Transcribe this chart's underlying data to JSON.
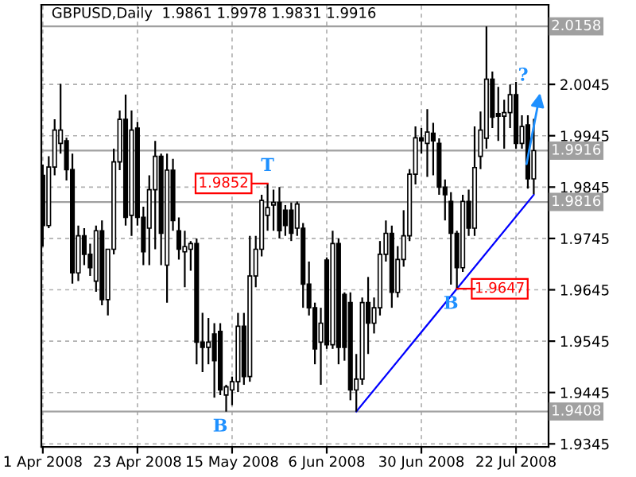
{
  "chart_data": {
    "type": "candlestick",
    "title": "GBPUSD,Daily  1.9861 1.9978 1.9831 1.9916",
    "categories": [
      "1 Apr 2008",
      null,
      null,
      null,
      null,
      null,
      null,
      null,
      null,
      null,
      null,
      null,
      null,
      null,
      null,
      null,
      "23 Apr 2008",
      null,
      null,
      null,
      null,
      null,
      null,
      null,
      null,
      null,
      null,
      null,
      null,
      null,
      null,
      null,
      "15 May 2008",
      null,
      null,
      null,
      null,
      null,
      null,
      null,
      null,
      null,
      null,
      null,
      null,
      null,
      null,
      null,
      "6 Jun 2008",
      null,
      null,
      null,
      null,
      null,
      null,
      null,
      null,
      null,
      null,
      null,
      null,
      null,
      null,
      null,
      "30 Jun 2008",
      null,
      null,
      null,
      null,
      null,
      null,
      null,
      null,
      null,
      null,
      null,
      null,
      null,
      null,
      null,
      "22 Jul 2008",
      null,
      null,
      null
    ],
    "ohlc": [
      [
        1.9868,
        1.9889,
        1.9729,
        1.977
      ],
      [
        1.977,
        1.9905,
        1.9765,
        1.9884
      ],
      [
        1.9884,
        1.9977,
        1.9868,
        1.9956
      ],
      [
        1.993,
        2.0046,
        1.991,
        1.9956
      ],
      [
        1.9935,
        1.9941,
        1.9858,
        1.9879
      ],
      [
        1.9879,
        1.991,
        1.9657,
        1.9678
      ],
      [
        1.9678,
        1.977,
        1.9662,
        1.975
      ],
      [
        1.975,
        1.9765,
        1.9693,
        1.9714
      ],
      [
        1.9714,
        1.9735,
        1.9672,
        1.9688
      ],
      [
        1.9662,
        1.977,
        1.9641,
        1.976
      ],
      [
        1.976,
        1.978,
        1.9615,
        1.9626
      ],
      [
        1.9626,
        1.9724,
        1.9595,
        1.9724
      ],
      [
        1.9724,
        1.992,
        1.9714,
        1.9894
      ],
      [
        1.9894,
        1.9994,
        1.9878,
        1.9977
      ],
      [
        1.9977,
        2.0025,
        1.977,
        1.9786
      ],
      [
        1.979,
        1.9994,
        1.975,
        1.9956
      ],
      [
        1.996,
        1.9972,
        1.977,
        1.9786
      ],
      [
        1.9786,
        1.9807,
        1.9693,
        1.9719
      ],
      [
        1.9765,
        1.9868,
        1.9693,
        1.984
      ],
      [
        1.984,
        1.9935,
        1.9724,
        1.9905
      ],
      [
        1.9905,
        1.991,
        1.9693,
        1.9755
      ],
      [
        1.9693,
        1.991,
        1.962,
        1.9878
      ],
      [
        1.9878,
        1.99,
        1.976,
        1.978
      ],
      [
        1.976,
        1.9786,
        1.9704,
        1.9724
      ],
      [
        1.9719,
        1.976,
        1.965,
        1.9729
      ],
      [
        1.9724,
        1.974,
        1.9682,
        1.9735
      ],
      [
        1.9735,
        1.9745,
        1.95,
        1.9543
      ],
      [
        1.9543,
        1.96,
        1.9485,
        1.9533
      ],
      [
        1.9533,
        1.959,
        1.95,
        1.9543
      ],
      [
        1.9559,
        1.958,
        1.9435,
        1.9507
      ],
      [
        1.9564,
        1.958,
        1.944,
        1.945
      ],
      [
        1.944,
        1.946,
        1.9408,
        1.9456
      ],
      [
        1.945,
        1.9476,
        1.942,
        1.9466
      ],
      [
        1.9466,
        1.96,
        1.9446,
        1.9574
      ],
      [
        1.9574,
        1.96,
        1.946,
        1.9476
      ],
      [
        1.9476,
        1.975,
        1.9466,
        1.9672
      ],
      [
        1.9672,
        1.975,
        1.965,
        1.9724
      ],
      [
        1.9724,
        1.983,
        1.971,
        1.9819
      ],
      [
        1.979,
        1.9852,
        1.976,
        1.9805
      ],
      [
        1.981,
        1.984,
        1.976,
        1.9815
      ],
      [
        1.9815,
        1.9845,
        1.9745,
        1.976
      ],
      [
        1.98,
        1.981,
        1.975,
        1.977
      ],
      [
        1.98,
        1.9815,
        1.974,
        1.9755
      ],
      [
        1.9765,
        1.9817,
        1.975,
        1.9812
      ],
      [
        1.9765,
        1.9775,
        1.961,
        1.9656
      ],
      [
        1.9656,
        1.97,
        1.9595,
        1.961
      ],
      [
        1.961,
        1.962,
        1.95,
        1.953
      ],
      [
        1.9543,
        1.961,
        1.946,
        1.958
      ],
      [
        1.9703,
        1.9708,
        1.953,
        1.9538
      ],
      [
        1.9538,
        1.976,
        1.953,
        1.9735
      ],
      [
        1.9735,
        1.9745,
        1.95,
        1.9533
      ],
      [
        1.9636,
        1.964,
        1.9507,
        1.9533
      ],
      [
        1.962,
        1.964,
        1.943,
        1.945
      ],
      [
        1.945,
        1.952,
        1.9408,
        1.9471
      ],
      [
        1.9471,
        1.963,
        1.946,
        1.962
      ],
      [
        1.962,
        1.967,
        1.952,
        1.958
      ],
      [
        1.958,
        1.963,
        1.956,
        1.961
      ],
      [
        1.961,
        1.974,
        1.9595,
        1.9714
      ],
      [
        1.9714,
        1.978,
        1.97,
        1.9755
      ],
      [
        1.9755,
        1.977,
        1.961,
        1.964
      ],
      [
        1.964,
        1.973,
        1.963,
        1.9704
      ],
      [
        1.9704,
        1.98,
        1.969,
        1.975
      ],
      [
        1.975,
        1.988,
        1.974,
        1.987
      ],
      [
        1.987,
        1.9963,
        1.985,
        1.9941
      ],
      [
        1.9941,
        1.996,
        1.991,
        1.9935
      ],
      [
        1.993,
        1.9997,
        1.9865,
        1.9952
      ],
      [
        1.995,
        1.997,
        1.9868,
        1.9935
      ],
      [
        1.993,
        1.994,
        1.983,
        1.9845
      ],
      [
        1.9845,
        1.986,
        1.978,
        1.983
      ],
      [
        1.9817,
        1.9835,
        1.9655,
        1.9755
      ],
      [
        1.9755,
        1.976,
        1.9647,
        1.9688
      ],
      [
        1.9688,
        1.983,
        1.968,
        1.9817
      ],
      [
        1.9817,
        1.984,
        1.975,
        1.9765
      ],
      [
        1.9765,
        1.9963,
        1.975,
        1.9883
      ],
      [
        1.9905,
        1.9992,
        1.988,
        1.9956
      ],
      [
        1.994,
        2.0158,
        1.992,
        2.0055
      ],
      [
        2.0055,
        2.007,
        1.996,
        1.9981
      ],
      [
        1.9988,
        2.004,
        1.9935,
        1.9983
      ],
      [
        1.9983,
        2.0015,
        1.992,
        1.999
      ],
      [
        1.999,
        2.0045,
        1.996,
        2.0025
      ],
      [
        2.0025,
        2.005,
        1.992,
        1.993
      ],
      [
        1.993,
        1.9985,
        1.992,
        1.9963
      ],
      [
        1.9966,
        1.9985,
        1.9842,
        1.9861
      ],
      [
        1.9861,
        1.9978,
        1.9831,
        1.9916
      ]
    ],
    "series": [
      {
        "type": "line",
        "color": "#0000ff",
        "values": [
          null,
          null,
          null,
          null,
          null,
          null,
          null,
          null,
          null,
          null,
          null,
          null,
          null,
          null,
          null,
          null,
          null,
          null,
          null,
          null,
          null,
          null,
          null,
          null,
          null,
          null,
          null,
          null,
          null,
          null,
          null,
          null,
          null,
          null,
          null,
          null,
          null,
          null,
          null,
          null,
          null,
          null,
          null,
          null,
          null,
          null,
          null,
          null,
          null,
          null,
          null,
          null,
          null,
          1.9408,
          null,
          null,
          null,
          null,
          null,
          null,
          null,
          null,
          null,
          null,
          null,
          null,
          null,
          null,
          null,
          null,
          1.9647,
          null,
          null,
          null,
          null,
          null,
          null,
          null,
          null,
          null,
          null,
          null,
          null,
          1.983
        ]
      }
    ],
    "ylim": [
      1.9339,
      2.02
    ],
    "yticks": [
      1.9345,
      1.9445,
      1.9545,
      1.9645,
      1.9745,
      1.9845,
      1.9945,
      2.0045
    ],
    "ref_lines": [
      {
        "axis": "y",
        "value": 2.0158,
        "label": "2.0158",
        "color": "#a0a0a0"
      },
      {
        "axis": "y",
        "value": 1.9916,
        "label": "1.9916",
        "color": "#a0a0a0"
      },
      {
        "axis": "y",
        "value": 1.9816,
        "label": "1.9816",
        "color": "#a0a0a0"
      },
      {
        "axis": "y",
        "value": 1.9408,
        "label": "1.9408",
        "color": "#a0a0a0"
      }
    ],
    "annotations": [
      {
        "text": "1.9852",
        "y": 1.9852
      },
      "T",
      {
        "text": "1.9647",
        "y": 1.9647
      },
      "B",
      "B",
      "?"
    ],
    "grid": true
  }
}
